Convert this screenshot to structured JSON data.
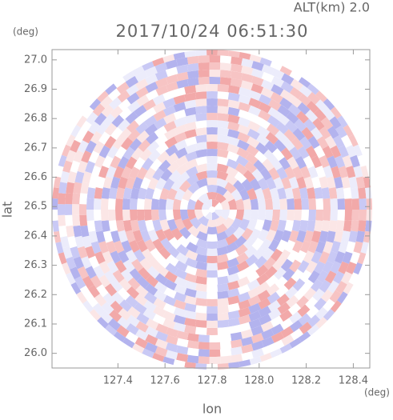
{
  "chart_data": {
    "type": "radar-ppi",
    "title": "2017/10/24 06:51:30",
    "annotation": "ALT(km) 2.0",
    "x_label": "lon",
    "x_unit": "(deg)",
    "y_label": "lat",
    "y_unit": "(deg)",
    "xlim": [
      127.12,
      128.47
    ],
    "xticks": [
      127.4,
      127.6,
      127.8,
      {
        "value": 128.0,
        "label": "128.0"
      },
      128.2,
      128.4
    ],
    "ylim": [
      25.95,
      27.035
    ],
    "yticks": [
      {
        "value": 26.0,
        "label": "26.0"
      },
      26.1,
      26.2,
      26.3,
      26.4,
      26.5,
      26.6,
      26.7,
      26.8,
      26.9,
      {
        "value": 27.0,
        "label": "27.0"
      }
    ]
  }
}
